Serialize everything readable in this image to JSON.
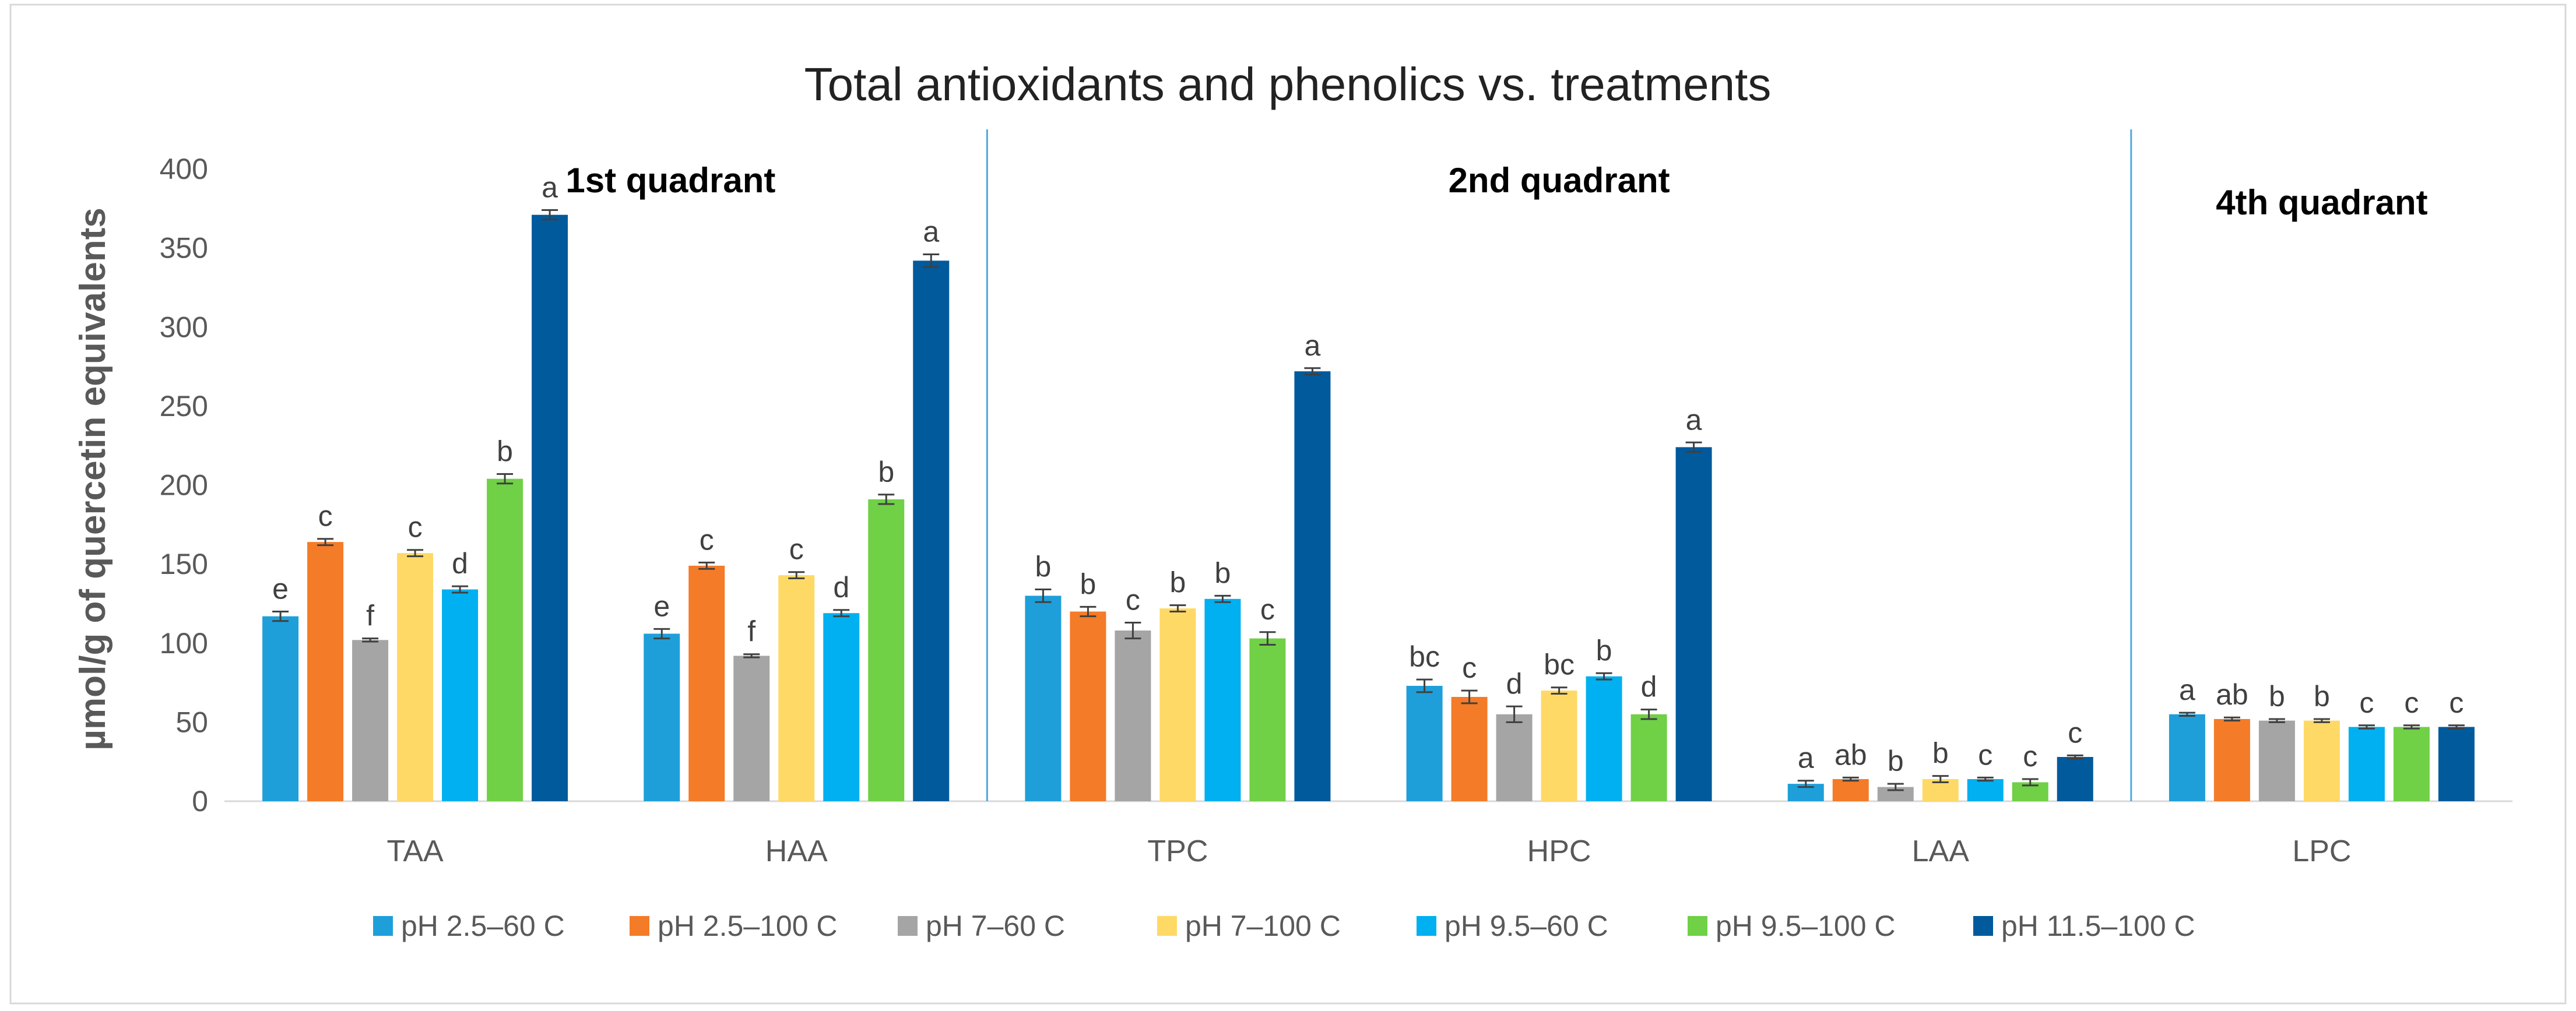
{
  "chart_data": {
    "type": "bar",
    "title": "Total antioxidants and phenolics vs. treatments",
    "xlabel": "",
    "ylabel": "µmol/g of quercetin equivalents",
    "ylim": [
      0,
      400
    ],
    "yticks": [
      0,
      50,
      100,
      150,
      200,
      250,
      300,
      350,
      400
    ],
    "categories": [
      "TAA",
      "HAA",
      "TPC",
      "HPC",
      "LAA",
      "LPC"
    ],
    "quadrants": [
      {
        "label": "1st quadrant",
        "categories": [
          "TAA",
          "HAA"
        ]
      },
      {
        "label": "2nd quadrant",
        "categories": [
          "TPC",
          "HPC",
          "LAA"
        ]
      },
      {
        "label": "4th quadrant",
        "categories": [
          "LPC"
        ]
      }
    ],
    "legend_position": "bottom",
    "series": [
      {
        "name": "pH 2.5–60 C",
        "color": "#1F9FD9",
        "values": [
          117,
          106,
          130,
          73,
          11,
          55
        ],
        "errors": [
          3,
          3,
          4,
          4,
          2,
          1
        ],
        "letters": [
          "e",
          "e",
          "b",
          "bc",
          "a",
          "a"
        ]
      },
      {
        "name": "pH 2.5–100 C",
        "color": "#F47B28",
        "values": [
          164,
          149,
          120,
          66,
          14,
          52
        ],
        "errors": [
          2,
          2,
          3,
          4,
          1,
          1
        ],
        "letters": [
          "c",
          "c",
          "b",
          "c",
          "ab",
          "ab"
        ]
      },
      {
        "name": "pH 7–60 C",
        "color": "#A5A5A5",
        "values": [
          102,
          92,
          108,
          55,
          9,
          51
        ],
        "errors": [
          1,
          1,
          5,
          5,
          2,
          1
        ],
        "letters": [
          "f",
          "f",
          "c",
          "d",
          "b",
          "b"
        ]
      },
      {
        "name": "pH 7–100 C",
        "color": "#FFD966",
        "values": [
          157,
          143,
          122,
          70,
          14,
          51
        ],
        "errors": [
          2,
          2,
          2,
          2,
          2,
          1
        ],
        "letters": [
          "c",
          "c",
          "b",
          "bc",
          "b",
          "b"
        ]
      },
      {
        "name": "pH 9.5–60 C",
        "color": "#00B0F0",
        "values": [
          134,
          119,
          128,
          79,
          14,
          47
        ],
        "errors": [
          2,
          2,
          2,
          2,
          1,
          1
        ],
        "letters": [
          "d",
          "d",
          "b",
          "b",
          "c",
          "c"
        ]
      },
      {
        "name": "pH 9.5–100 C",
        "color": "#70D046",
        "values": [
          204,
          191,
          103,
          55,
          12,
          47
        ],
        "errors": [
          3,
          3,
          4,
          3,
          2,
          1
        ],
        "letters": [
          "b",
          "b",
          "c",
          "d",
          "c",
          "c"
        ]
      },
      {
        "name": "pH 11.5–100 C",
        "color": "#005A9C",
        "values": [
          371,
          342,
          272,
          224,
          28,
          47
        ],
        "errors": [
          3,
          4,
          2,
          3,
          1,
          1
        ],
        "letters": [
          "a",
          "a",
          "a",
          "a",
          "c",
          "c"
        ]
      }
    ]
  }
}
